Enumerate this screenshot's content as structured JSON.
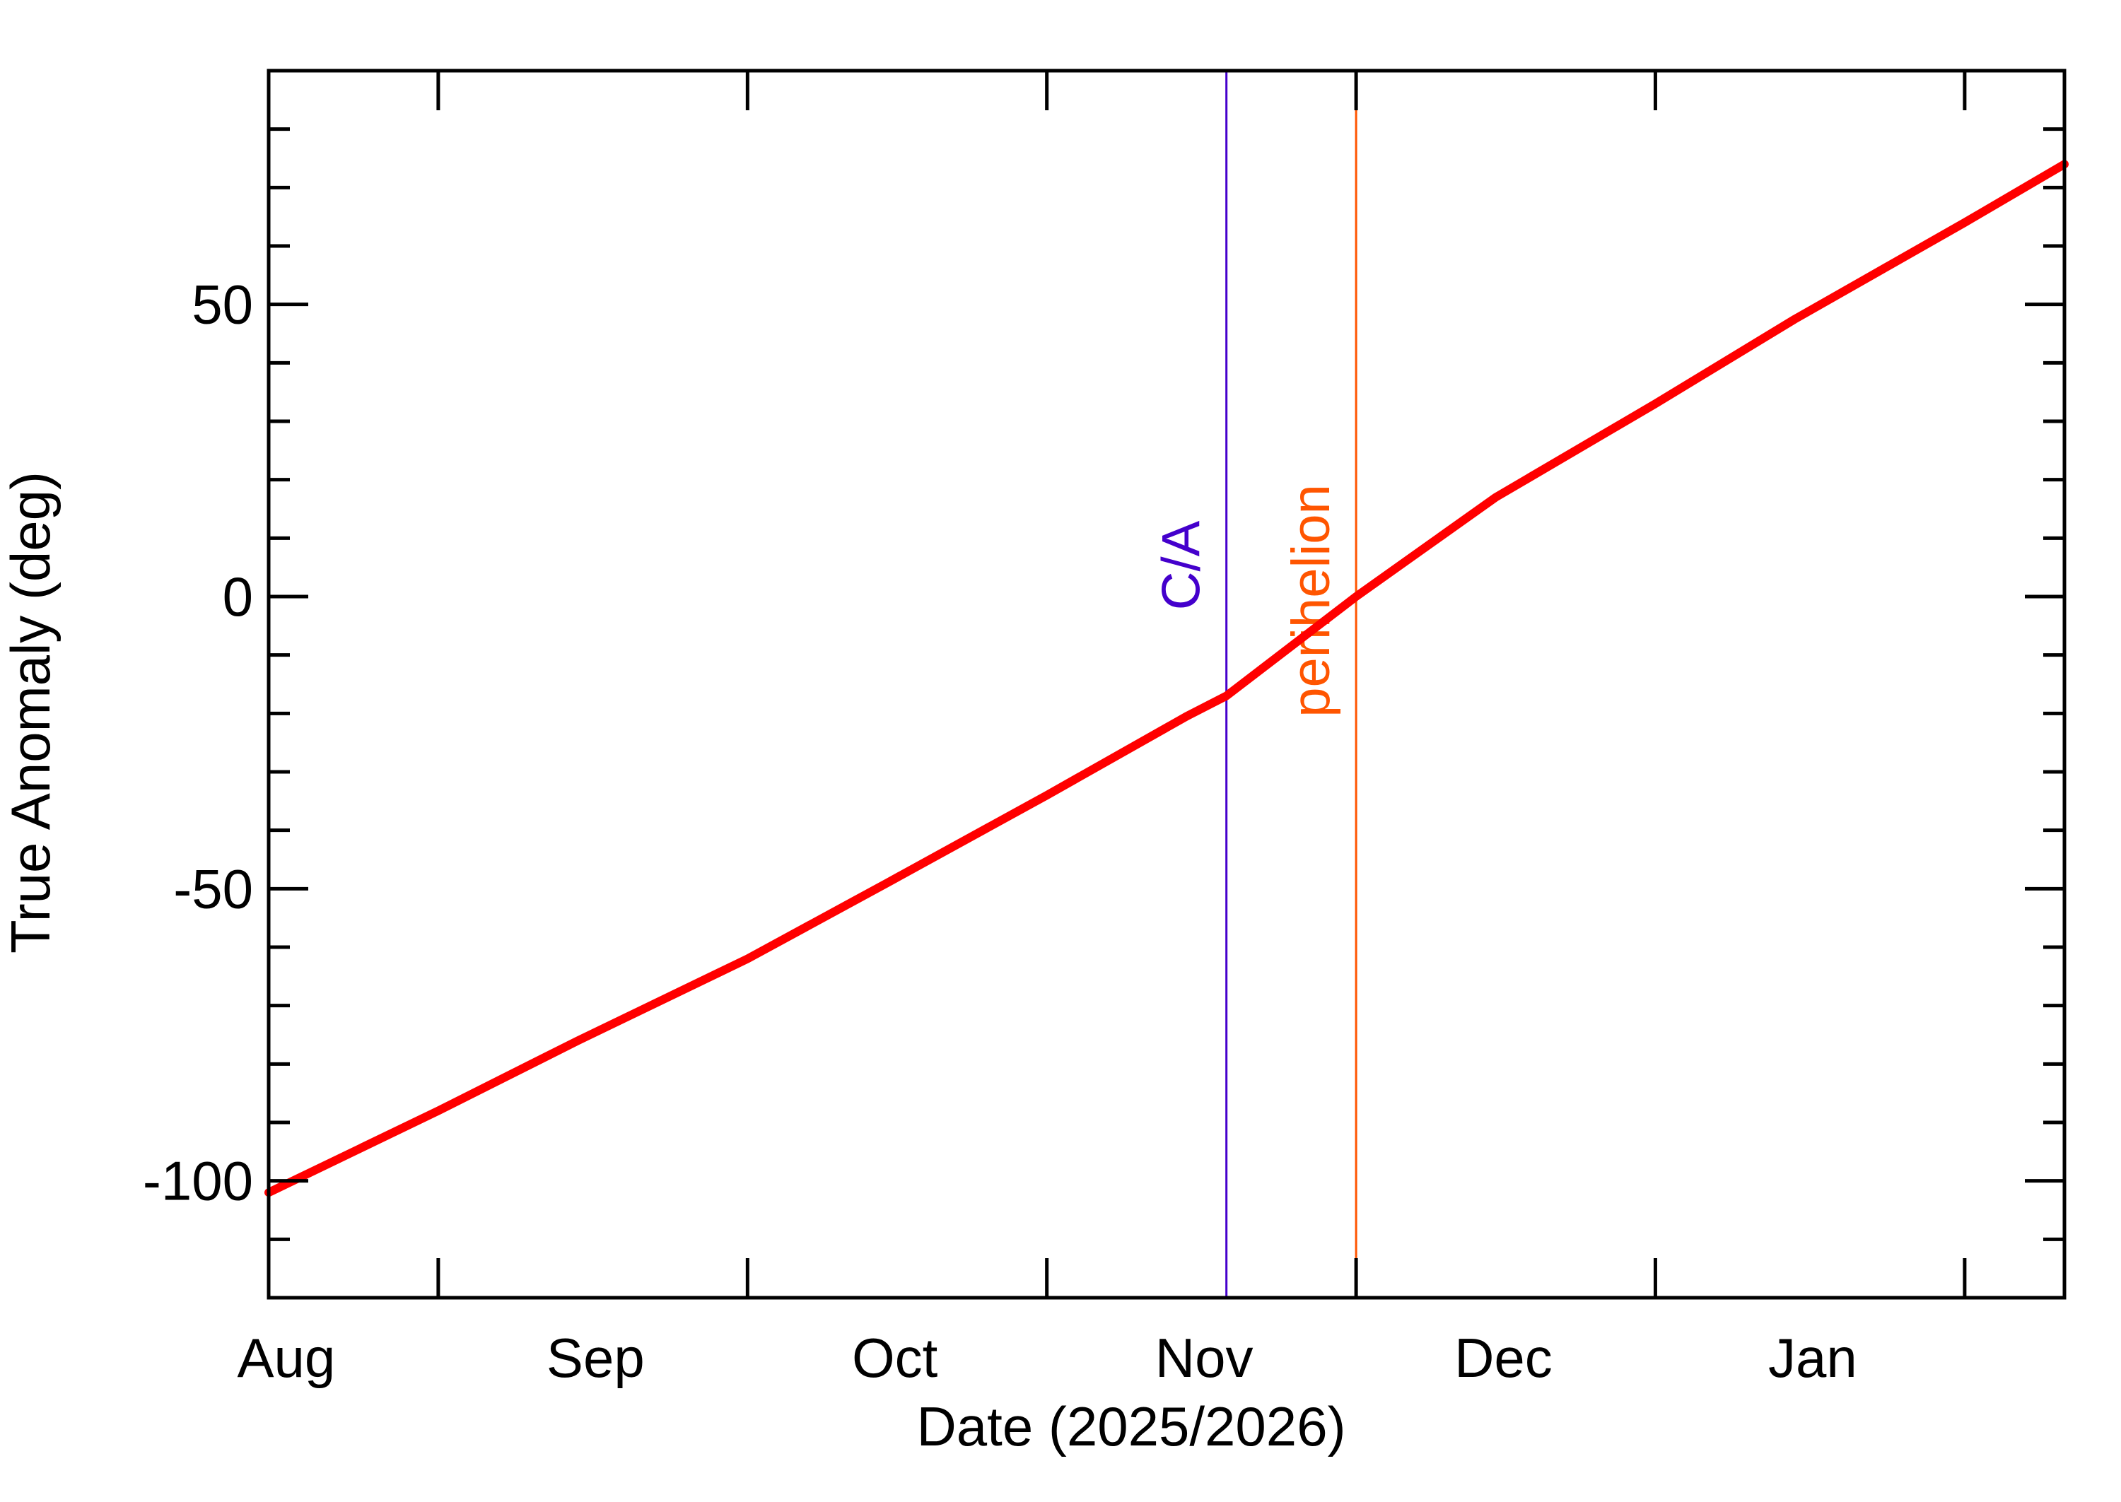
{
  "chart_data": {
    "type": "line",
    "xlabel": "Date (2025/2026)",
    "ylabel": "True Anomaly (deg)",
    "x_start": "2025-07-15",
    "x_end": "2026-01-11",
    "ylim": [
      -120,
      90
    ],
    "y_major_ticks": [
      -100,
      -50,
      0,
      50
    ],
    "y_minor_step": 10,
    "x_ticks": [
      {
        "label": "Aug",
        "date": "2025-08-01"
      },
      {
        "label": "Sep",
        "date": "2025-09-01"
      },
      {
        "label": "Oct",
        "date": "2025-10-01"
      },
      {
        "label": "Nov",
        "date": "2025-11-01"
      },
      {
        "label": "Dec",
        "date": "2025-12-01"
      },
      {
        "label": "Jan",
        "date": "2026-01-01"
      }
    ],
    "series": [
      {
        "color": "#ff0000",
        "x": [
          "2025-07-15",
          "2025-08-01",
          "2025-08-15",
          "2025-09-01",
          "2025-09-15",
          "2025-10-01",
          "2025-10-15",
          "2025-10-19",
          "2025-11-01",
          "2025-11-15",
          "2025-12-01",
          "2025-12-15",
          "2026-01-01",
          "2026-01-11"
        ],
        "y": [
          -102,
          -88,
          -76,
          -62,
          -49,
          -34,
          -20.5,
          -17,
          0,
          17,
          33,
          47.5,
          64,
          74
        ]
      }
    ],
    "markers": [
      {
        "label": "C/A",
        "date": "2025-10-19",
        "color": "#4400cc"
      },
      {
        "label": "perihelion",
        "date": "2025-11-01",
        "color": "#ff5500"
      }
    ]
  }
}
